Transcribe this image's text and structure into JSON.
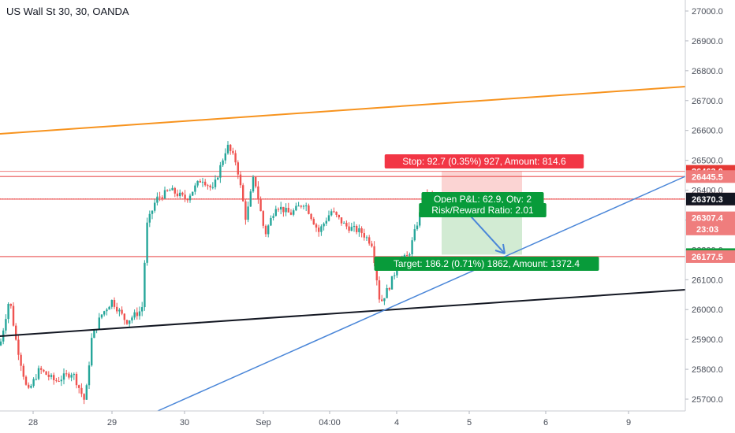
{
  "header": {
    "title": "US Wall St 30, 30, OANDA"
  },
  "chart_data": {
    "type": "candlestick",
    "ylim": [
      25660,
      27040
    ],
    "y_ticks": [
      27000,
      26900,
      26800,
      26700,
      26600,
      26500,
      26400,
      26300,
      26200,
      26100,
      26000,
      25900,
      25800,
      25700
    ],
    "x_ticks": [
      "28",
      "29",
      "30",
      "Sep",
      "04:00",
      "4",
      "5",
      "6",
      "9"
    ],
    "price_tags": [
      {
        "value": 26463.0,
        "label": "26463.0",
        "color": "#e53935"
      },
      {
        "value": 26445.5,
        "label": "26445.5",
        "color": "#ef7d7d"
      },
      {
        "value": 26370.2,
        "label": "26370.2",
        "color": "#ef7d7d"
      },
      {
        "value": 26370.3,
        "label": "26370.3",
        "color": "#131722"
      },
      {
        "value": 26307.4,
        "label": "26307.4",
        "color": "#ef7d7d"
      },
      {
        "value": 26184.1,
        "label": "26184.1",
        "color": "#089b3a"
      },
      {
        "value": 26177.5,
        "label": "26177.5",
        "color": "#ef7d7d"
      }
    ],
    "countdown": "23:03",
    "horizontal_lines": [
      26445.5,
      26370.2,
      26177.5
    ],
    "last_price": 26370.3,
    "position": {
      "entry": 26370.3,
      "stop": 26463.0,
      "target": 26184.1,
      "stop_label": "Stop: 92.7 (0.35%) 927, Amount: 814.6",
      "target_label": "Target: 186.2 (0.71%) 1862, Amount: 1372.4",
      "pnl_label": "Open P&L: 62.9, Qty: 2",
      "rr_label": "Risk/Reward Ratio: 2.01"
    },
    "trendlines": [
      {
        "name": "orange",
        "color": "#f7931e"
      },
      {
        "name": "black",
        "color": "#131722"
      },
      {
        "name": "blue",
        "color": "#4a86d8"
      }
    ],
    "up_color": "#26a69a",
    "down_color": "#ef5350",
    "grid": false
  }
}
